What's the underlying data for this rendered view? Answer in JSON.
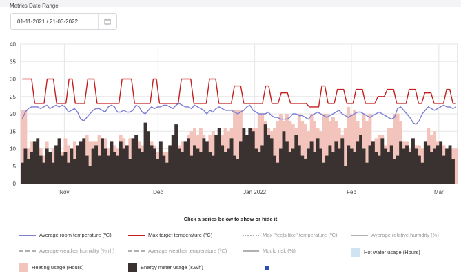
{
  "filter": {
    "label": "Metrics Date Range",
    "value": "01-11-2021 / 21-03-2022",
    "calendar_icon": "calendar-icon"
  },
  "hint": "Click a series below to show or hide it",
  "colors": {
    "avg_temp": "#7b7fd6",
    "max_target": "#c41e1e",
    "heating": "#f2c4bb",
    "energy": "#3a3131",
    "hot_water": "#cfe3f2",
    "muted": "#b0b0b0",
    "grid": "#e6e6e6"
  },
  "legend": [
    {
      "label": "Average room temperature (ºC)",
      "style": "line",
      "color": "#7b7fd6",
      "active": true
    },
    {
      "label": "Max target temperature (ºC)",
      "style": "line",
      "color": "#c41e1e",
      "active": true
    },
    {
      "label": "Max \"feels like\" temperature (ºC)",
      "style": "dot",
      "color": "#b0b0b0",
      "active": false
    },
    {
      "label": "Average relative humidity (%)",
      "style": "line",
      "color": "#b0b0b0",
      "active": false
    },
    {
      "label": "Average weather humidity (% rh)",
      "style": "dash",
      "color": "#b0b0b0",
      "active": false
    },
    {
      "label": "Average weather temperature (ºC)",
      "style": "dash",
      "color": "#b0b0b0",
      "active": false
    },
    {
      "label": "Mould risk (%)",
      "style": "line",
      "color": "#b0b0b0",
      "active": false
    },
    {
      "label": "Hot water usage (Hours)",
      "style": "box",
      "color": "#cfe3f2",
      "active": true
    },
    {
      "label": "Heating usage (Hours)",
      "style": "box",
      "color": "#f2c4bb",
      "active": true
    },
    {
      "label": "Energy meter usage (KWh)",
      "style": "box",
      "color": "#3a3131",
      "active": true
    }
  ],
  "chart_data": {
    "type": "bar",
    "ylim": [
      0,
      40
    ],
    "yticks": [
      0,
      5,
      10,
      15,
      20,
      25,
      30,
      35,
      40
    ],
    "x_start": "2021-11-01",
    "x_end": "2022-03-21",
    "month_ticks": [
      {
        "label": "Nov",
        "date": "2021-11-15"
      },
      {
        "label": "Dec",
        "date": "2021-12-15"
      },
      {
        "label": "Jan 2022",
        "date": "2022-01-15"
      },
      {
        "label": "Feb",
        "date": "2022-02-15"
      },
      {
        "label": "Mar",
        "date": "2022-03-15"
      }
    ],
    "grid": true,
    "series": [
      {
        "name": "Max target temperature (ºC)",
        "kind": "line",
        "values": [
          30,
          30,
          30,
          30,
          23,
          23,
          23,
          23,
          30,
          30,
          30,
          23,
          23,
          23,
          23,
          30,
          30,
          23,
          23,
          23,
          23,
          30,
          30,
          30,
          23,
          23,
          23,
          23,
          23,
          23,
          23,
          23,
          30,
          30,
          30,
          30,
          23,
          23,
          23,
          23,
          23,
          23,
          30,
          30,
          23,
          23,
          23,
          23,
          23,
          23,
          23,
          30,
          30,
          30,
          30,
          23,
          23,
          23,
          23,
          23,
          30,
          30,
          30,
          23,
          23,
          23,
          23,
          23,
          28,
          28,
          28,
          23,
          23,
          23,
          23,
          23,
          23,
          23,
          28,
          28,
          23,
          23,
          23,
          26,
          26,
          26,
          23,
          23,
          23,
          23,
          23,
          23,
          22,
          22,
          22,
          22,
          28,
          28,
          23,
          23,
          23,
          27,
          27,
          27,
          23,
          23,
          23,
          27,
          27,
          27,
          23,
          23,
          23,
          23,
          25,
          25,
          25,
          27,
          27,
          27,
          23,
          23,
          23,
          23,
          27,
          27,
          27,
          23,
          23,
          26,
          26,
          26,
          23,
          23,
          23,
          23,
          27,
          27,
          23,
          23
        ]
      },
      {
        "name": "Average room temperature (ºC)",
        "kind": "line",
        "values": [
          18.5,
          20.5,
          21.5,
          22,
          22,
          22,
          21.5,
          22,
          22.5,
          21.5,
          22,
          22.5,
          22,
          22.5,
          22,
          20.5,
          21,
          21.5,
          20.5,
          18.5,
          18,
          19,
          20,
          21,
          21.5,
          21.5,
          21,
          20.5,
          22,
          22.5,
          22,
          20.5,
          20.5,
          21,
          20.5,
          20.5,
          21,
          22.5,
          22,
          20.5,
          20,
          21,
          22,
          21.5,
          22,
          22,
          22.5,
          22.5,
          22,
          21.5,
          22.5,
          23,
          22.5,
          22,
          22,
          21.5,
          22.5,
          22,
          21.5,
          21,
          20,
          21,
          20.5,
          21.5,
          22,
          21.5,
          21,
          21,
          21,
          20.5,
          20,
          20.5,
          21,
          22,
          22.5,
          21,
          20.5,
          20,
          20,
          20,
          20.5,
          19.5,
          19,
          19,
          18.5,
          18.5,
          18.5,
          19,
          20,
          20,
          19.5,
          19.5,
          19,
          18.5,
          19.5,
          20,
          20.5,
          20,
          19.5,
          19,
          19.5,
          20,
          20.5,
          21,
          20,
          19.5,
          19,
          19.5,
          20,
          20.5,
          20.5,
          20,
          19.5,
          19,
          19.5,
          20,
          20.5,
          20,
          19.5,
          19,
          18.5,
          19,
          21.5,
          22,
          21,
          20,
          19,
          17.5,
          17,
          18,
          20,
          21,
          22,
          21.5,
          21,
          21.5,
          22,
          22.5,
          22,
          22,
          21.5,
          22
        ]
      },
      {
        "name": "Heating usage (Hours)",
        "kind": "bar",
        "values": [
          21,
          21,
          10,
          12,
          10,
          9,
          10,
          8,
          12,
          9,
          10,
          11,
          11,
          9,
          13,
          11,
          10,
          12,
          10,
          12,
          11,
          14,
          12,
          12,
          12,
          14,
          13,
          13,
          10,
          12,
          11,
          10,
          14,
          13,
          11,
          13,
          12,
          10,
          12,
          11,
          10,
          15,
          12,
          11,
          9,
          10,
          9,
          9,
          11,
          12,
          11,
          11,
          12,
          11,
          14,
          15,
          16,
          14,
          16,
          14,
          10,
          14,
          15,
          14,
          13,
          14,
          16,
          15,
          16,
          21,
          21,
          21,
          12,
          14,
          14,
          16,
          16,
          20,
          20,
          18,
          16,
          15,
          16,
          18,
          20,
          18,
          20,
          18,
          17,
          16,
          20,
          18,
          17,
          15,
          20,
          18,
          16,
          15,
          20,
          20,
          18,
          19,
          18,
          16,
          14,
          16,
          22,
          20,
          21,
          18,
          16,
          20,
          18,
          20,
          12,
          13,
          14,
          14,
          11,
          16,
          16,
          20,
          20,
          18,
          12,
          12,
          10,
          10,
          11,
          11,
          10,
          10,
          16,
          14,
          15,
          12,
          11,
          11,
          10,
          9,
          10,
          10
        ]
      },
      {
        "name": "Energy meter usage (KWh)",
        "kind": "bar",
        "values": [
          6,
          10,
          7,
          9,
          12,
          13,
          8,
          6,
          10,
          9,
          6,
          11,
          13,
          8,
          9,
          6,
          10,
          7,
          11,
          12,
          13,
          8,
          5,
          10,
          11,
          8,
          13,
          10,
          8,
          12,
          9,
          8,
          12,
          10,
          11,
          7,
          13,
          14,
          10,
          9,
          17.5,
          15,
          11,
          10,
          7,
          12,
          8,
          6,
          11,
          14,
          17,
          10,
          9,
          12,
          13,
          8,
          11,
          10,
          9,
          13,
          12,
          9,
          8,
          14,
          16,
          11,
          9,
          10,
          13,
          8,
          7,
          12,
          16,
          14,
          16,
          15,
          10,
          9,
          11,
          17,
          14,
          13,
          8,
          6,
          10,
          15,
          12,
          9,
          10,
          14,
          11,
          8,
          7,
          10,
          12,
          9,
          13,
          10,
          6,
          8,
          11,
          9,
          12,
          10,
          13,
          5,
          11,
          10,
          9,
          12,
          14,
          10,
          6,
          11,
          12,
          9,
          8,
          13,
          10,
          9,
          11,
          7,
          8,
          12,
          10,
          11,
          9,
          13,
          10,
          8,
          6,
          12,
          11,
          9,
          10,
          11,
          12,
          8,
          10,
          11,
          7
        ]
      },
      {
        "name": "Hot water usage (Hours)",
        "kind": "bar",
        "values": []
      }
    ]
  }
}
